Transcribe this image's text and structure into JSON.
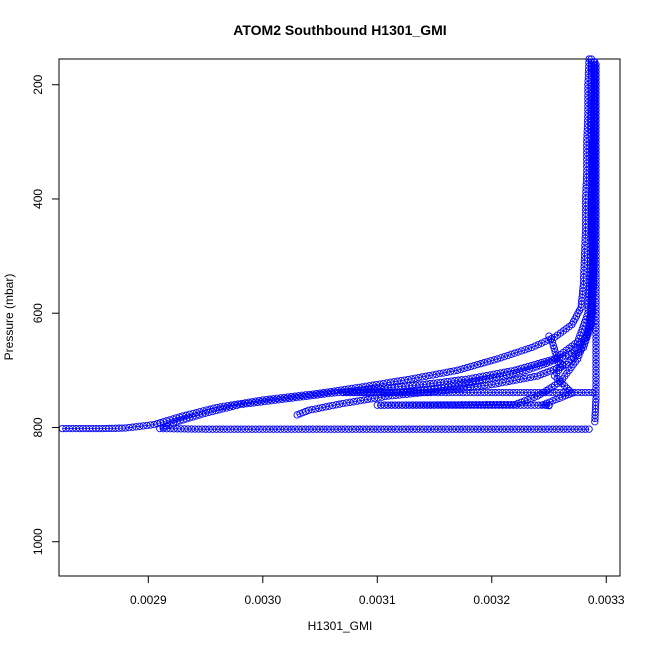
{
  "chart_data": {
    "type": "scatter",
    "title": "ATOM2 Southbound H1301_GMI",
    "xlabel": "H1301_GMI",
    "ylabel": "Pressure (mbar)",
    "xlim": [
      0.002822,
      0.003312
    ],
    "ylim": [
      1060,
      155
    ],
    "y_reversed": true,
    "x_ticks": [
      0.0029,
      0.003,
      0.0031,
      0.0032,
      0.0033
    ],
    "x_tick_labels": [
      "0.0029",
      "0.0030",
      "0.0031",
      "0.0032",
      "0.0033"
    ],
    "y_ticks": [
      200,
      400,
      600,
      800,
      1000
    ],
    "y_tick_labels": [
      "200",
      "400",
      "600",
      "800",
      "1000"
    ],
    "grid": false,
    "legend": "none",
    "marker": "open-circle",
    "color": "#0000ff",
    "series": [
      {
        "points": [
          [
            0.003285,
            155
          ],
          [
            0.003284,
            200
          ],
          [
            0.003284,
            250
          ],
          [
            0.003283,
            300
          ],
          [
            0.003283,
            350
          ],
          [
            0.003282,
            400
          ],
          [
            0.003282,
            450
          ],
          [
            0.003281,
            500
          ],
          [
            0.00328,
            550
          ],
          [
            0.003278,
            590
          ],
          [
            0.00327,
            620
          ],
          [
            0.003255,
            642
          ],
          [
            0.003235,
            660
          ],
          [
            0.003205,
            680
          ],
          [
            0.00317,
            700
          ],
          [
            0.00313,
            715
          ],
          [
            0.00309,
            728
          ],
          [
            0.00305,
            740
          ],
          [
            0.003,
            752
          ],
          [
            0.00296,
            765
          ],
          [
            0.00293,
            780
          ],
          [
            0.002905,
            795
          ],
          [
            0.00288,
            801
          ],
          [
            0.00286,
            802
          ],
          [
            0.00284,
            802
          ],
          [
            0.002825,
            802
          ]
        ]
      },
      {
        "points": [
          [
            0.003287,
            155
          ],
          [
            0.003287,
            250
          ],
          [
            0.003287,
            350
          ],
          [
            0.003287,
            450
          ],
          [
            0.003286,
            550
          ],
          [
            0.003284,
            600
          ],
          [
            0.003275,
            650
          ],
          [
            0.003255,
            680
          ],
          [
            0.00322,
            700
          ],
          [
            0.00318,
            715
          ],
          [
            0.00314,
            725
          ],
          [
            0.0031,
            732
          ],
          [
            0.00306,
            740
          ],
          [
            0.00302,
            750
          ],
          [
            0.00298,
            760
          ],
          [
            0.00295,
            775
          ],
          [
            0.002925,
            790
          ],
          [
            0.00291,
            802
          ],
          [
            0.00295,
            803
          ],
          [
            0.003,
            803
          ],
          [
            0.00305,
            803
          ],
          [
            0.0031,
            803
          ],
          [
            0.00315,
            803
          ],
          [
            0.0032,
            803
          ],
          [
            0.00325,
            803
          ],
          [
            0.003285,
            803
          ]
        ]
      },
      {
        "points": [
          [
            0.00329,
            160
          ],
          [
            0.00329,
            300
          ],
          [
            0.00329,
            450
          ],
          [
            0.003289,
            550
          ],
          [
            0.003287,
            620
          ],
          [
            0.00328,
            660
          ],
          [
            0.003265,
            690
          ],
          [
            0.00324,
            710
          ],
          [
            0.0032,
            725
          ],
          [
            0.00316,
            735
          ],
          [
            0.00311,
            745
          ],
          [
            0.00307,
            758
          ],
          [
            0.00304,
            770
          ],
          [
            0.00303,
            778
          ]
        ]
      },
      {
        "points": [
          [
            0.003289,
            160
          ],
          [
            0.003289,
            350
          ],
          [
            0.003288,
            500
          ],
          [
            0.003287,
            600
          ],
          [
            0.003283,
            640
          ],
          [
            0.00327,
            670
          ],
          [
            0.003245,
            690
          ],
          [
            0.00323,
            700
          ],
          [
            0.00321,
            710
          ],
          [
            0.00318,
            722
          ],
          [
            0.00315,
            732
          ],
          [
            0.00312,
            738
          ],
          [
            0.00307,
            739
          ],
          [
            0.0031,
            739
          ],
          [
            0.00315,
            739
          ],
          [
            0.0032,
            739
          ],
          [
            0.00325,
            739
          ],
          [
            0.003288,
            739
          ]
        ]
      },
      {
        "points": [
          [
            0.003288,
            300
          ],
          [
            0.003288,
            500
          ],
          [
            0.003286,
            620
          ],
          [
            0.003275,
            680
          ],
          [
            0.00326,
            720
          ],
          [
            0.00324,
            745
          ],
          [
            0.00322,
            760
          ],
          [
            0.0031,
            761
          ],
          [
            0.00315,
            761
          ],
          [
            0.0032,
            761
          ],
          [
            0.00325,
            761
          ]
        ]
      },
      {
        "points": [
          [
            0.003291,
            165
          ],
          [
            0.003291,
            300
          ],
          [
            0.003291,
            450
          ],
          [
            0.003291,
            600
          ],
          [
            0.003291,
            700
          ],
          [
            0.003291,
            750
          ],
          [
            0.00329,
            790
          ]
        ]
      },
      {
        "points": [
          [
            0.00325,
            640
          ],
          [
            0.003252,
            645
          ],
          [
            0.003258,
            685
          ],
          [
            0.003262,
            690
          ],
          [
            0.003255,
            710
          ],
          [
            0.00327,
            740
          ],
          [
            0.003245,
            760
          ],
          [
            0.00325,
            762
          ]
        ]
      }
    ]
  }
}
